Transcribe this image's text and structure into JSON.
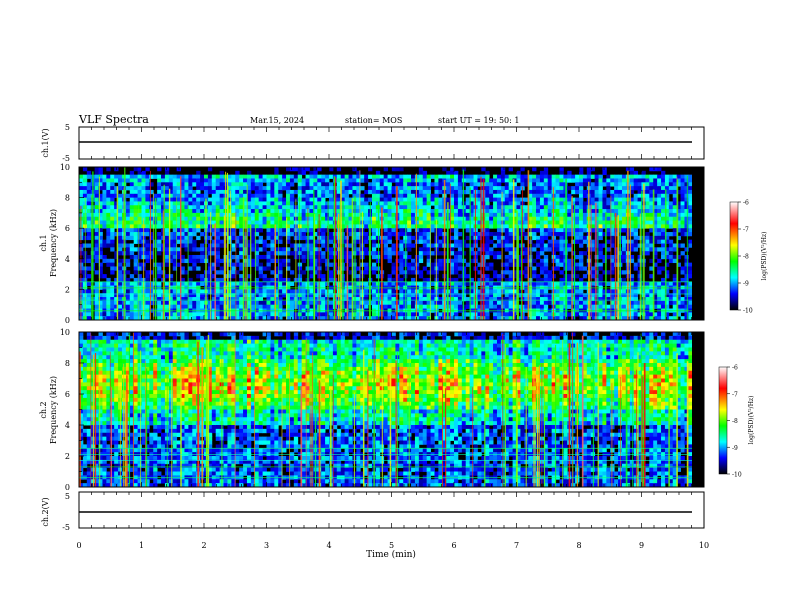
{
  "header": {
    "title": "VLF Spectra",
    "date": "Mar.15, 2024",
    "station": "station= MOS",
    "start": "start  UT =   19: 50: 1"
  },
  "colorbar": {
    "label": "log(PSD)(V²/Hz)",
    "ticks": [
      "-6",
      "-7",
      "-8",
      "-9",
      "-10"
    ],
    "colors": [
      "#ffffff",
      "#ff0000",
      "#ffff00",
      "#00ff00",
      "#00ffff",
      "#0000ff",
      "#000000"
    ]
  },
  "chart_data": [
    {
      "type": "line",
      "panel": "ch1-voltage",
      "ylabel": "ch.1(V)",
      "ylim": [
        -5,
        5
      ],
      "yticks": [
        "5",
        "-5"
      ],
      "x": [
        0,
        10
      ],
      "values": [
        0,
        0
      ]
    },
    {
      "type": "heatmap",
      "panel": "ch1-spectrogram",
      "ylabel": "ch.1\nFrequency (kHz)",
      "xlim": [
        0,
        10
      ],
      "ylim": [
        0,
        10
      ],
      "yticks": [
        "0",
        "2",
        "4",
        "6",
        "8",
        "10"
      ],
      "zlim": [
        -10,
        -6
      ],
      "description_mode": "broadband low-level emission with dense vertical sferic impulses; strongest 0-1 kHz and 6-9 kHz"
    },
    {
      "type": "heatmap",
      "panel": "ch2-spectrogram",
      "ylabel": "ch.2\nFrequency (kHz)",
      "xlim": [
        0,
        10
      ],
      "ylim": [
        0,
        10
      ],
      "yticks": [
        "0",
        "2",
        "4",
        "6",
        "8",
        "10"
      ],
      "zlim": [
        -10,
        -6
      ],
      "description_mode": "intense band between 5-8 kHz (red/yellow) with vertical sferic impulses"
    },
    {
      "type": "line",
      "panel": "ch2-voltage",
      "ylabel": "ch.2(V)",
      "ylim": [
        -5,
        5
      ],
      "yticks": [
        "5",
        "-5"
      ],
      "x": [
        0,
        10
      ],
      "values": [
        0,
        0
      ]
    }
  ],
  "xaxis": {
    "label": "Time  (min)",
    "ticks": [
      "0",
      "1",
      "2",
      "3",
      "4",
      "5",
      "6",
      "7",
      "8",
      "9",
      "10"
    ]
  }
}
